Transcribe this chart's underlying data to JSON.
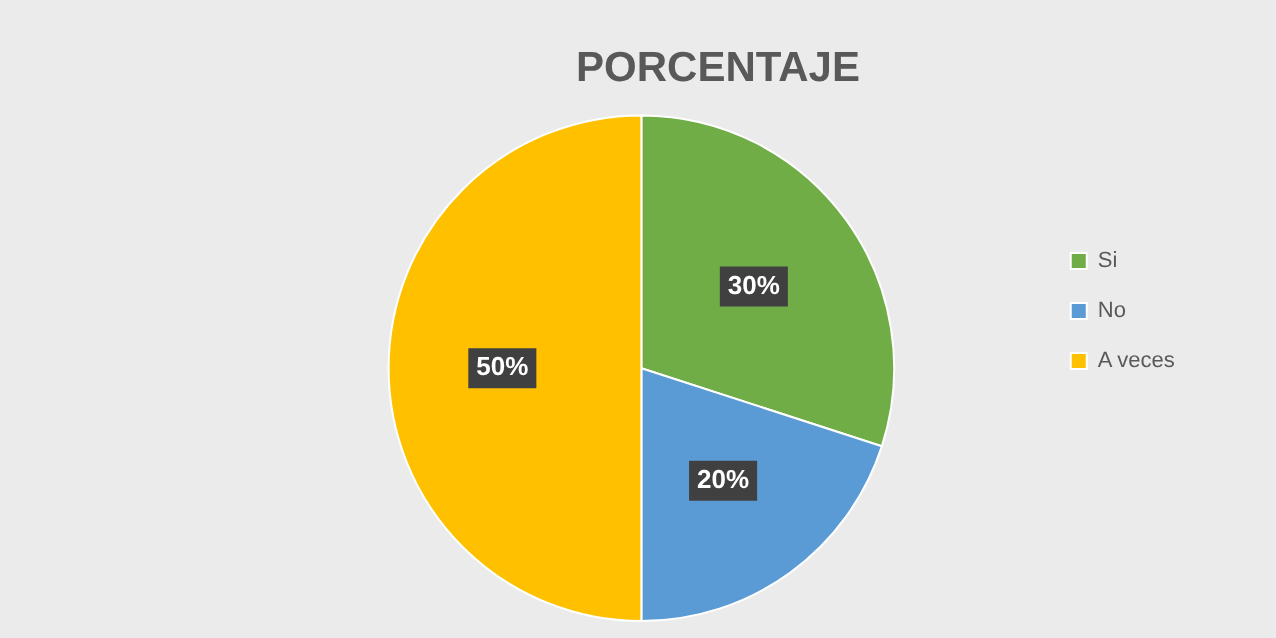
{
  "chart_data": {
    "type": "pie",
    "title": "PORCENTAJE",
    "categories": [
      "Si",
      "No",
      "A veces"
    ],
    "values": [
      30,
      20,
      50
    ],
    "colors": [
      "#70ad47",
      "#5b9bd5",
      "#ffc000"
    ],
    "value_labels": [
      "30%",
      "20%",
      "50%"
    ],
    "legend": "right"
  }
}
